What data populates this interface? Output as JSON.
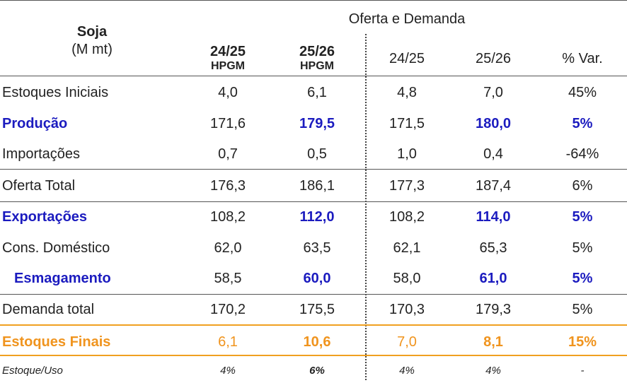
{
  "header": {
    "title": "Soja",
    "unit": "(M mt)",
    "group_label": "Oferta e Demanda",
    "col1_year": "24/25",
    "col1_sub": "HPGM",
    "col2_year": "25/26",
    "col2_sub": "HPGM",
    "col3": "24/25",
    "col4": "25/26",
    "col5": "% Var."
  },
  "rows": [
    {
      "label": "Estoques Iniciais",
      "v": [
        "4,0",
        "6,1",
        "4,8",
        "7,0",
        "45%"
      ]
    },
    {
      "label": "Produção",
      "v": [
        "171,6",
        "179,5",
        "171,5",
        "180,0",
        "5%"
      ]
    },
    {
      "label": "Importações",
      "v": [
        "0,7",
        "0,5",
        "1,0",
        "0,4",
        "-64%"
      ]
    },
    {
      "label": "Oferta Total",
      "v": [
        "176,3",
        "186,1",
        "177,3",
        "187,4",
        "6%"
      ]
    },
    {
      "label": "Exportações",
      "v": [
        "108,2",
        "112,0",
        "108,2",
        "114,0",
        "5%"
      ]
    },
    {
      "label": "Cons. Doméstico",
      "v": [
        "62,0",
        "63,5",
        "62,1",
        "65,3",
        "5%"
      ]
    },
    {
      "label": "Esmagamento",
      "v": [
        "58,5",
        "60,0",
        "58,0",
        "61,0",
        "5%"
      ]
    },
    {
      "label": "Demanda total",
      "v": [
        "170,2",
        "175,5",
        "170,3",
        "179,3",
        "5%"
      ]
    },
    {
      "label": "Estoques Finais",
      "v": [
        "6,1",
        "10,6",
        "7,0",
        "8,1",
        "15%"
      ]
    },
    {
      "label": "Estoque/Uso",
      "v": [
        "4%",
        "6%",
        "4%",
        "4%",
        "-"
      ]
    }
  ],
  "colors": {
    "blue": "#1b1bbf",
    "orange": "#f0941e",
    "line": "#555555"
  }
}
